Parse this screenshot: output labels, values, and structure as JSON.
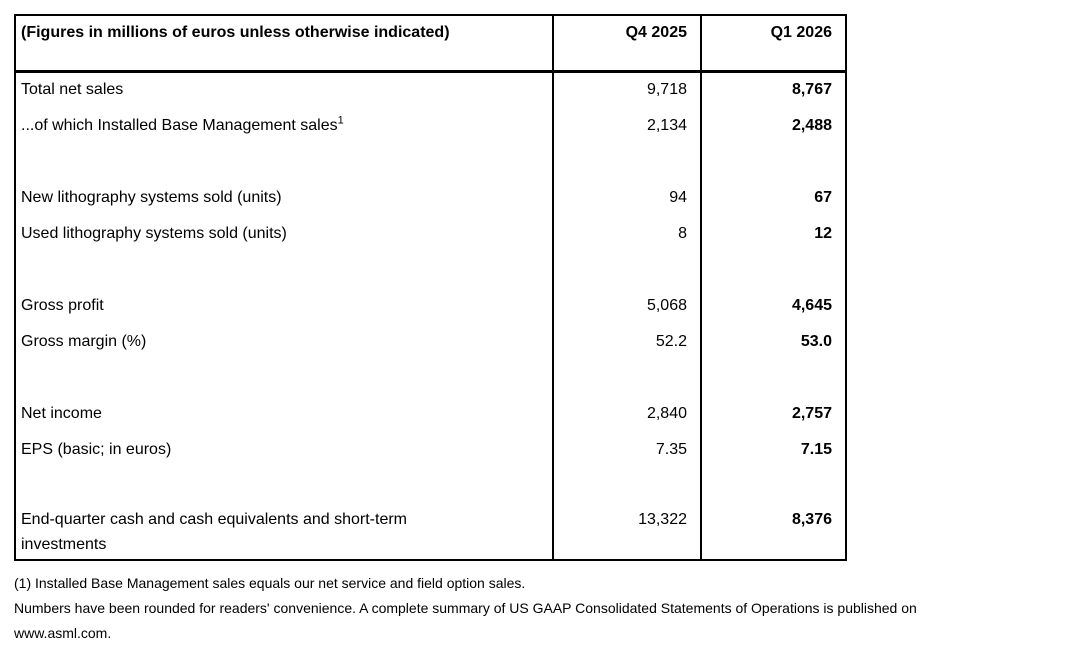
{
  "table": {
    "header": {
      "label": "(Figures in millions of euros unless otherwise indicated)",
      "col1": "Q4 2025",
      "col2": "Q1 2026"
    },
    "rows": [
      {
        "label": "Total net sales",
        "q4": "9,718",
        "q1": "8,767"
      },
      {
        "label": "...of which Installed Base Management sales",
        "sup": "1",
        "q4": "2,134",
        "q1": "2,488"
      },
      {
        "label": "New lithography systems sold (units)",
        "q4": "94",
        "q1": "67"
      },
      {
        "label": "Used lithography systems sold (units)",
        "q4": "8",
        "q1": "12"
      },
      {
        "label": "Gross profit",
        "q4": "5,068",
        "q1": "4,645"
      },
      {
        "label": "Gross margin (%)",
        "q4": "52.2",
        "q1": "53.0"
      },
      {
        "label": "Net income",
        "q4": "2,840",
        "q1": "2,757"
      },
      {
        "label": "EPS (basic; in euros)",
        "q4": "7.35",
        "q1": "7.15"
      },
      {
        "label": "End-quarter cash and cash equivalents and short-term investments",
        "q4": "13,322",
        "q1": "8,376"
      }
    ]
  },
  "footnotes": {
    "line1": "(1) Installed Base Management sales equals our net service and field option sales.",
    "line2": "Numbers have been rounded for readers' convenience. A complete summary of US GAAP Consolidated Statements of Operations is published on",
    "line3": "www.asml.com."
  },
  "colors": {
    "background": "#ffffff",
    "text": "#000000",
    "border": "#000000"
  }
}
